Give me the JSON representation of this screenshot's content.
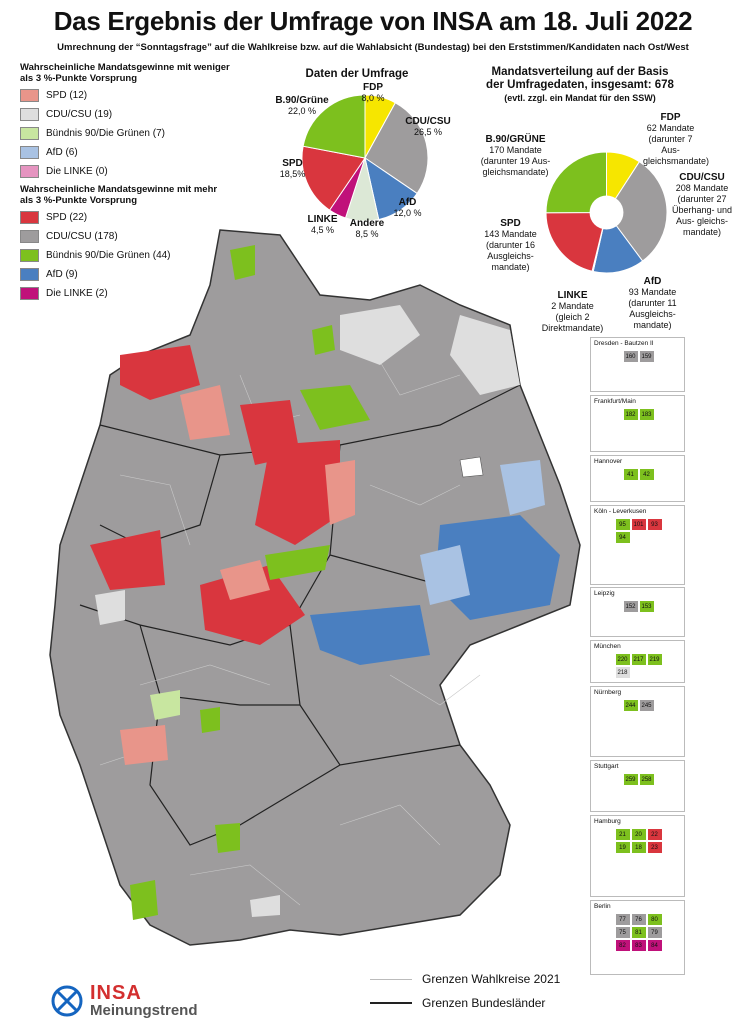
{
  "title": "Das Ergebnis der Umfrage von INSA am 18. Juli 2022",
  "subtitle": "Umrechnung der “Sonntagsfrage” auf die Wahlkreise bzw. auf die Wahlabsicht (Bundestag) bei den Erststimmen/Kandidaten nach Ost/West",
  "colors": {
    "spd_light": "#e8958a",
    "spd": "#d9363e",
    "cdu_light": "#dedede",
    "cdu": "#9e9c9d",
    "gruene_light": "#c8e6a0",
    "gruene": "#7dc01e",
    "afd_light": "#a9c2e3",
    "afd": "#4a7fc0",
    "linke_light": "#e594c0",
    "linke": "#c0117a",
    "fdp": "#f6e600",
    "andere": "#dce8d6"
  },
  "legend": {
    "heading_weak": "Wahrscheinliche Mandatsgewinne mit weniger als 3 %-Punkte Vorsprung",
    "weak": [
      {
        "label": "SPD (12)",
        "color": "#e8958a"
      },
      {
        "label": "CDU/CSU (19)",
        "color": "#dedede"
      },
      {
        "label": "Bündnis 90/Die Grünen (7)",
        "color": "#c8e6a0"
      },
      {
        "label": "AfD (6)",
        "color": "#a9c2e3"
      },
      {
        "label": "Die LINKE (0)",
        "color": "#e594c0"
      }
    ],
    "heading_strong": "Wahrscheinliche Mandatsgewinne mit mehr als 3 %-Punkte Vorsprung",
    "strong": [
      {
        "label": "SPD (22)",
        "color": "#d9363e"
      },
      {
        "label": "CDU/CSU (178)",
        "color": "#9e9c9d"
      },
      {
        "label": "Bündnis 90/Die Grünen (44)",
        "color": "#7dc01e"
      },
      {
        "label": "AfD (9)",
        "color": "#4a7fc0"
      },
      {
        "label": "Die LINKE (2)",
        "color": "#c0117a"
      }
    ]
  },
  "survey": {
    "title": "Daten der Umfrage",
    "labels": [
      {
        "name": "FDP",
        "value": "8,0 %"
      },
      {
        "name": "CDU/CSU",
        "value": "26,5 %"
      },
      {
        "name": "AfD",
        "value": "12,0 %"
      },
      {
        "name": "Andere",
        "value": "8,5 %"
      },
      {
        "name": "LINKE",
        "value": "4,5 %"
      },
      {
        "name": "SPD",
        "value": "18,5%"
      },
      {
        "name": "B.90/Grüne",
        "value": "22,0 %"
      }
    ]
  },
  "seats": {
    "title_line1": "Mandatsverteilung auf der Basis",
    "title_line2": "der Umfragedaten, insgesamt: 678",
    "note": "(evtl. zzgl. ein Mandat für den SSW)",
    "labels": [
      {
        "name": "FDP",
        "detail": "62 Mandate (darunter 7 Aus- gleichsmandate)"
      },
      {
        "name": "CDU/CSU",
        "detail": "208 Mandate (darunter 27 Überhang- und Aus- gleichs- mandate)"
      },
      {
        "name": "AfD",
        "detail": "93 Mandate (darunter 11 Ausgleichs- mandate)"
      },
      {
        "name": "LINKE",
        "detail": "2 Mandate (gleich 2 Direktmandate)"
      },
      {
        "name": "SPD",
        "detail": "143 Mandate (darunter 16 Ausgleichs- mandate)"
      },
      {
        "name": "B.90/GRÜNE",
        "detail": "170 Mandate (darunter 19 Aus- gleichsmandate)"
      }
    ]
  },
  "chart_data": [
    {
      "type": "pie",
      "title": "Daten der Umfrage",
      "categories": [
        "FDP",
        "CDU/CSU",
        "AfD",
        "Andere",
        "LINKE",
        "SPD",
        "B.90/Grüne"
      ],
      "values": [
        8.0,
        26.5,
        12.0,
        8.5,
        4.5,
        18.5,
        22.0
      ],
      "colors": [
        "#f6e600",
        "#9e9c9d",
        "#4a7fc0",
        "#dce8d6",
        "#c0117a",
        "#d9363e",
        "#7dc01e"
      ]
    },
    {
      "type": "pie",
      "title": "Mandatsverteilung auf der Basis der Umfragedaten, insgesamt: 678",
      "categories": [
        "FDP",
        "CDU/CSU",
        "AfD",
        "LINKE",
        "SPD",
        "B.90/GRÜNE"
      ],
      "values": [
        62,
        208,
        93,
        2,
        143,
        170
      ],
      "colors": [
        "#f6e600",
        "#9e9c9d",
        "#4a7fc0",
        "#c0117a",
        "#d9363e",
        "#7dc01e"
      ]
    }
  ],
  "insets": [
    {
      "name": "Dresden - Bautzen II",
      "numbers": [
        "160",
        "159"
      ]
    },
    {
      "name": "Frankfurt/Main",
      "numbers": [
        "182",
        "183"
      ]
    },
    {
      "name": "Hannover",
      "numbers": [
        "41",
        "42"
      ]
    },
    {
      "name": "Köln - Leverkusen",
      "numbers": [
        "95",
        "101",
        "93",
        "94"
      ]
    },
    {
      "name": "Leipzig",
      "numbers": [
        "152",
        "153"
      ]
    },
    {
      "name": "München",
      "numbers": [
        "220",
        "217",
        "219",
        "218"
      ]
    },
    {
      "name": "Nürnberg",
      "numbers": [
        "244",
        "245"
      ]
    },
    {
      "name": "Stuttgart",
      "numbers": [
        "259",
        "258"
      ]
    },
    {
      "name": "Hamburg",
      "numbers": [
        "21",
        "20",
        "22",
        "19",
        "18",
        "23"
      ]
    },
    {
      "name": "Berlin",
      "numbers": [
        "77",
        "76",
        "80",
        "75",
        "81",
        "79",
        "82",
        "83",
        "84"
      ]
    }
  ],
  "line_legend": {
    "wahlkreise": "Grenzen Wahlkreise 2021",
    "laender": "Grenzen Bundesländer"
  },
  "logo": {
    "brand": "INSA",
    "tagline": "Meinungstrend"
  }
}
